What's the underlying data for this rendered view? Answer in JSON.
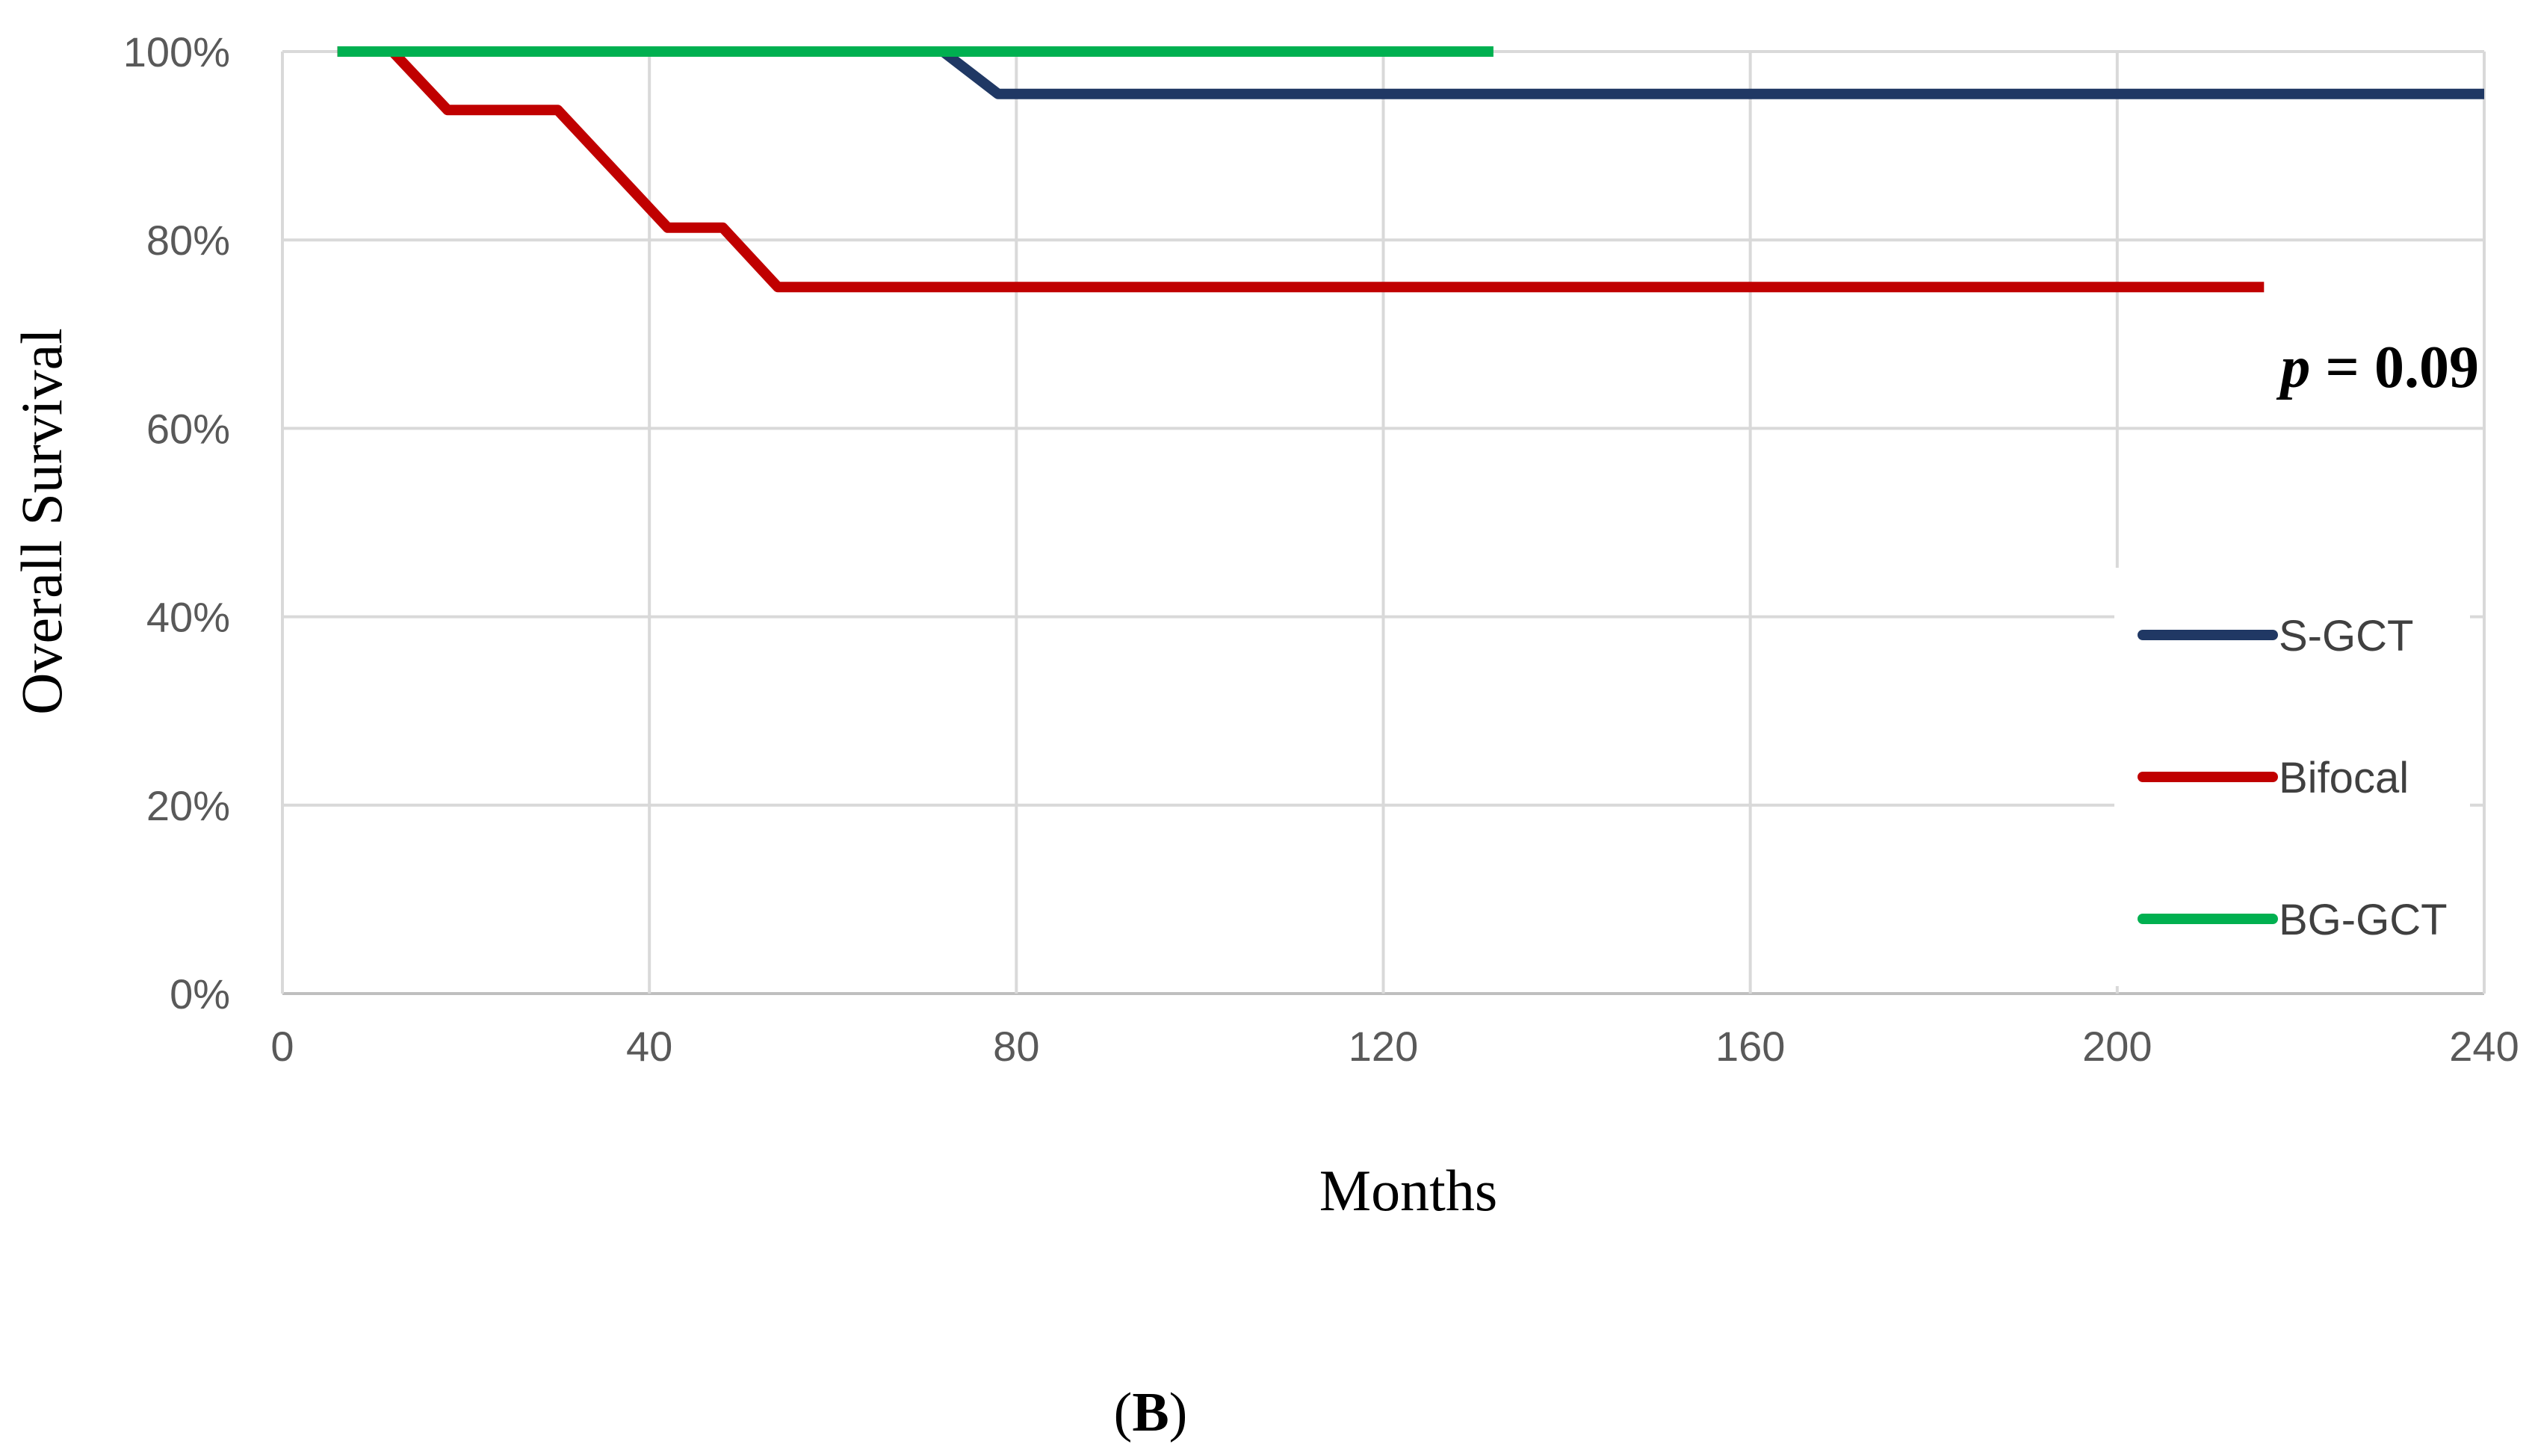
{
  "chart_data": {
    "type": "line",
    "step": true,
    "xlabel": "Months",
    "ylabel": "Overall Survival",
    "xlim": [
      0,
      240
    ],
    "ylim": [
      0,
      100
    ],
    "x_ticks": [
      0,
      40,
      80,
      120,
      160,
      200,
      240
    ],
    "y_ticks": [
      0,
      20,
      40,
      60,
      80,
      100
    ],
    "y_tick_labels": [
      "0%",
      "20%",
      "40%",
      "60%",
      "80%",
      "100%"
    ],
    "grid": true,
    "legend": "right",
    "annotation": {
      "italic": "p",
      "rest": " = 0.09"
    },
    "panel_label": {
      "open": "(",
      "letter": "B",
      "close": ")"
    },
    "series": [
      {
        "name": "S-GCT",
        "color": "#203864",
        "points": [
          [
            6,
            100
          ],
          [
            72,
            100
          ],
          [
            78,
            95.5
          ],
          [
            240,
            95.5
          ]
        ]
      },
      {
        "name": "Bifocal",
        "color": "#C00000",
        "points": [
          [
            6,
            100
          ],
          [
            12,
            100
          ],
          [
            18,
            93.8
          ],
          [
            30,
            93.8
          ],
          [
            42,
            81.3
          ],
          [
            48,
            81.3
          ],
          [
            54,
            75
          ],
          [
            216,
            75
          ]
        ]
      },
      {
        "name": "BG-GCT",
        "color": "#00B050",
        "points": [
          [
            6,
            100
          ],
          [
            132,
            100
          ]
        ]
      }
    ]
  }
}
